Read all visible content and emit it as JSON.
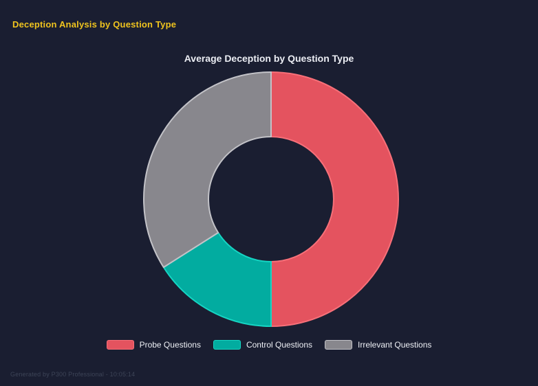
{
  "page": {
    "background_color": "#1a1e31",
    "header": {
      "title": "Deception Analysis by Question Type",
      "color": "#f0c41e"
    },
    "footer": {
      "text": "Generated by P300 Professional - 10:05:14",
      "color": "#3d4457"
    }
  },
  "chart_data": {
    "type": "pie",
    "subtype": "donut",
    "title": "Average Deception by Question Type",
    "title_color": "#ebedf3",
    "categories": [
      "Probe Questions",
      "Control Questions",
      "Irrelevant Questions"
    ],
    "values": [
      50,
      16,
      34
    ],
    "unit": "% of circle (estimated from segment angles)",
    "colors": [
      "#e4535f",
      "#02aca0",
      "#88878d"
    ],
    "border_colors": [
      "#f77079",
      "#16d5c3",
      "#c3c3c8"
    ],
    "start_angle_deg": 0,
    "direction": "clockwise",
    "cutout_ratio": 0.49,
    "legend_position": "bottom",
    "legend_text_color": "#eef0f5",
    "grid": false
  }
}
